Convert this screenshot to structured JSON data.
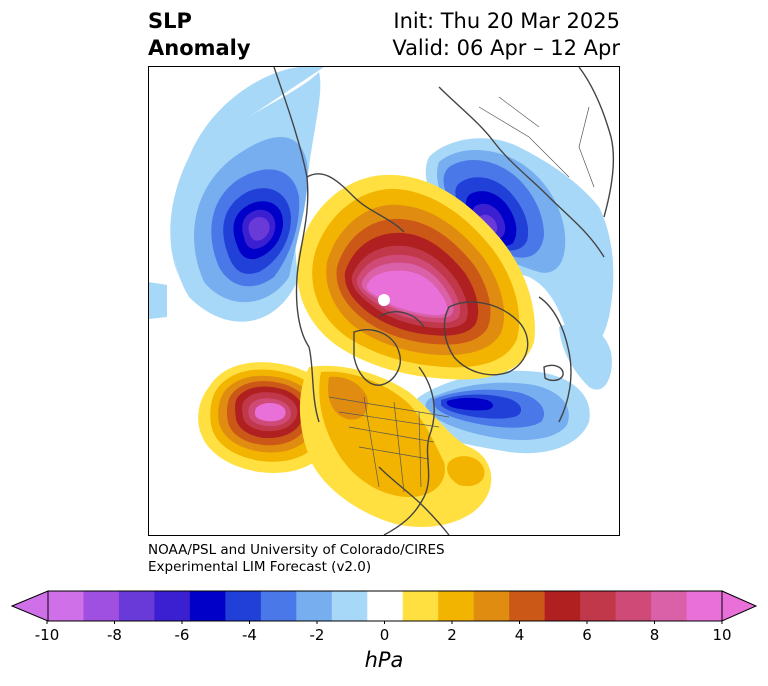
{
  "title": {
    "left_line1": "SLP",
    "left_line2": "Anomaly",
    "right_line1": "Init: Thu 20 Mar 2025",
    "right_line2": "Valid: 06 Apr – 12 Apr"
  },
  "credit": {
    "line1": "NOAA/PSL and University of Colorado/CIRES",
    "line2": "Experimental LIM Forecast (v2.0)"
  },
  "colorbar": {
    "unit": "hPa",
    "tick_labels": [
      "-10",
      "-8",
      "-6",
      "-4",
      "-2",
      "0",
      "2",
      "4",
      "6",
      "8",
      "10"
    ],
    "colors": [
      "#d070e8",
      "#a050e0",
      "#6a3ad8",
      "#3a20d0",
      "#0000c8",
      "#2040d8",
      "#4a78e8",
      "#76aef0",
      "#a8d8f8",
      "#ffffff",
      "#ffe040",
      "#f2b400",
      "#e08c10",
      "#cc5818",
      "#b02020",
      "#c0384a",
      "#d04a78",
      "#da60a8",
      "#e870d8"
    ]
  },
  "map": {
    "projection": "north-polar-stereographic",
    "variable": "sea level pressure anomaly"
  }
}
